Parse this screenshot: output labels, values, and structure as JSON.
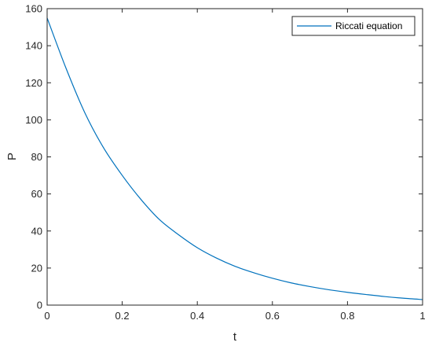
{
  "chart_data": {
    "type": "line",
    "title": "",
    "xlabel": "t",
    "ylabel": "P",
    "xlim": [
      0,
      1
    ],
    "ylim": [
      0,
      160
    ],
    "xticks": [
      0,
      0.2,
      0.4,
      0.6,
      0.8,
      1
    ],
    "xtick_labels": [
      "0",
      "0.2",
      "0.4",
      "0.6",
      "0.8",
      "1"
    ],
    "yticks": [
      0,
      20,
      40,
      60,
      80,
      100,
      120,
      140,
      160
    ],
    "ytick_labels": [
      "0",
      "20",
      "40",
      "60",
      "80",
      "100",
      "120",
      "140",
      "160"
    ],
    "grid": false,
    "legend_position": "top-right",
    "series": [
      {
        "name": "Riccati equation",
        "color": "#0072BD",
        "x": [
          0,
          0.05,
          0.1,
          0.15,
          0.2,
          0.25,
          0.3,
          0.35,
          0.4,
          0.45,
          0.5,
          0.55,
          0.6,
          0.65,
          0.7,
          0.75,
          0.8,
          0.85,
          0.9,
          0.95,
          1.0
        ],
        "y": [
          155,
          128,
          104,
          85,
          70,
          57,
          46,
          38,
          31,
          25.5,
          21,
          17.5,
          14.5,
          12,
          10,
          8.3,
          6.9,
          5.7,
          4.6,
          3.7,
          3
        ]
      }
    ]
  }
}
